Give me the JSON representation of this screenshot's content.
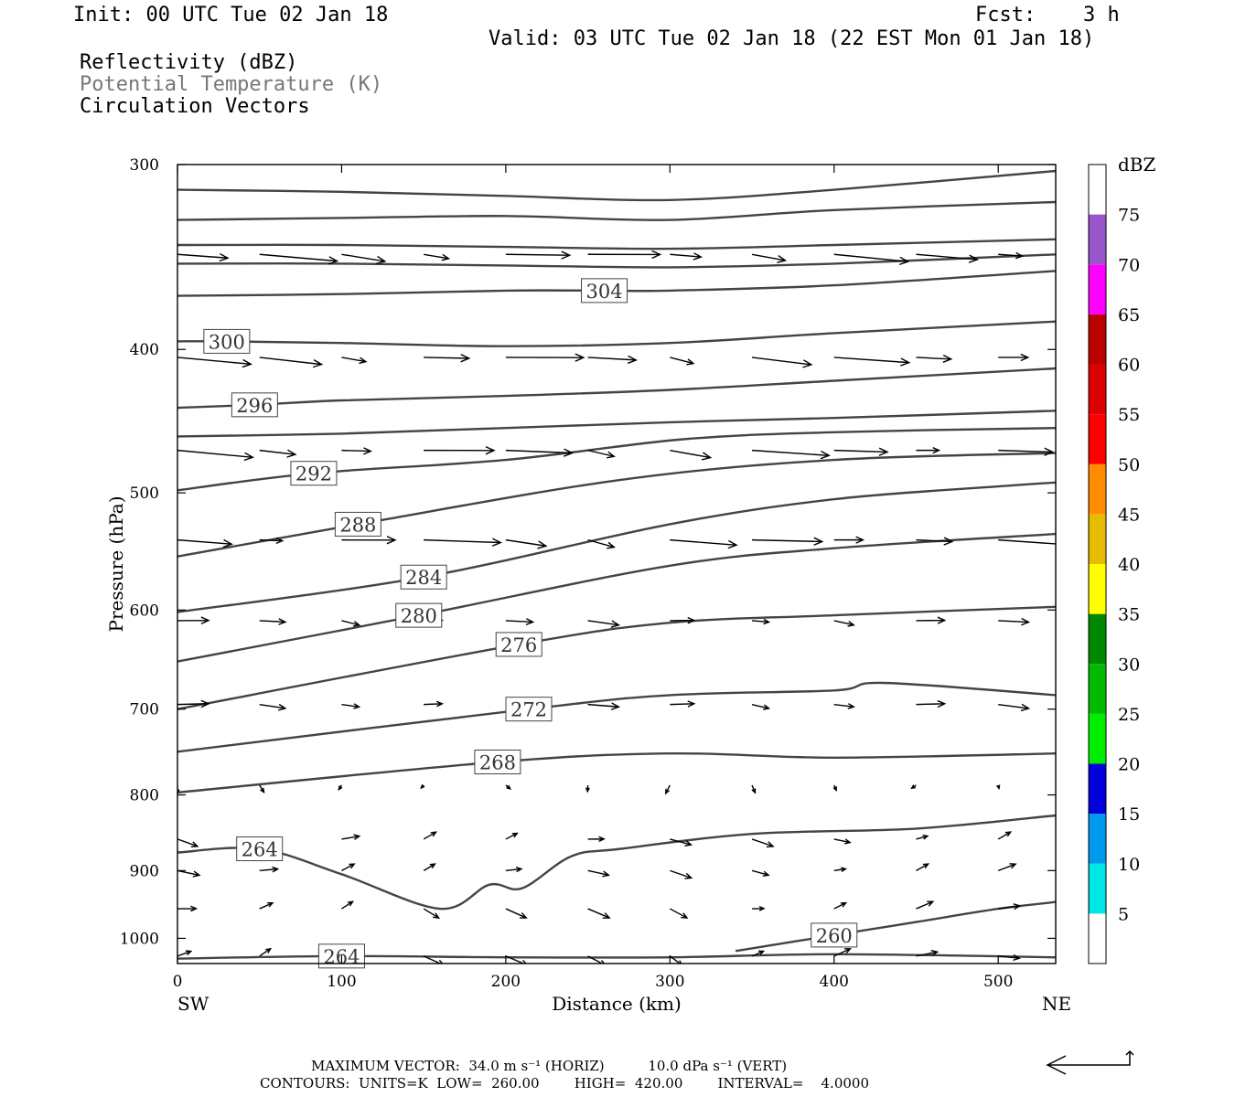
{
  "header": {
    "init": "Init: 00 UTC Tue 02 Jan 18",
    "fcst_label": "Fcst:",
    "fcst_value": "3 h",
    "valid": "Valid: 03 UTC Tue 02 Jan 18 (22 EST Mon 01 Jan 18)",
    "field1": "Reflectivity (dBZ)",
    "field2": "Potential Temperature (K)",
    "field3": "Circulation Vectors"
  },
  "footer": {
    "line1": "MAXIMUM VECTOR:  34.0 m s⁻¹ (HORIZ)          10.0 dPa s⁻¹ (VERT)",
    "line2": "CONTOURS:  UNITS=K  LOW=  260.00        HIGH=  420.00        INTERVAL=    4.0000"
  },
  "chart_data": {
    "type": "line",
    "subtype": "vertical cross-section",
    "xlabel": "Distance (km)",
    "ylabel": "Pressure (hPa)",
    "xlim": [
      0,
      535
    ],
    "ylim": [
      1040,
      300
    ],
    "y_scale": "log (pressure)",
    "x_ticks": [
      0,
      100,
      200,
      300,
      400,
      500
    ],
    "y_ticks": [
      300,
      400,
      500,
      600,
      700,
      800,
      900,
      1000
    ],
    "x_endpoint_labels": {
      "left": "SW",
      "right": "NE"
    },
    "contour_color": "#444444",
    "isentropes": [
      {
        "label": "",
        "x": [
          0,
          100,
          200,
          300,
          400,
          535
        ],
        "y": [
          312,
          313,
          315,
          317,
          312,
          303
        ]
      },
      {
        "label": "",
        "x": [
          0,
          100,
          200,
          300,
          400,
          535
        ],
        "y": [
          327,
          326,
          325,
          327,
          322,
          318
        ]
      },
      {
        "label": "",
        "x": [
          0,
          100,
          200,
          300,
          400,
          535
        ],
        "y": [
          340,
          340,
          341,
          342,
          340,
          337
        ]
      },
      {
        "label": "",
        "x": [
          0,
          100,
          200,
          300,
          400,
          535
        ],
        "y": [
          350,
          350,
          351,
          352,
          350,
          345
        ]
      },
      {
        "label": "304",
        "x": [
          0,
          100,
          200,
          260,
          300,
          400,
          535
        ],
        "y": [
          368,
          367,
          365,
          365,
          365,
          362,
          354
        ]
      },
      {
        "label": "300",
        "x": [
          0,
          30,
          100,
          200,
          300,
          400,
          535
        ],
        "y": [
          395,
          395,
          396,
          398,
          396,
          390,
          383
        ]
      },
      {
        "label": "296",
        "x": [
          0,
          47,
          100,
          200,
          300,
          400,
          535
        ],
        "y": [
          438,
          436,
          433,
          430,
          426,
          420,
          412
        ]
      },
      {
        "label": "",
        "x": [
          0,
          100,
          200,
          300,
          400,
          535
        ],
        "y": [
          458,
          456,
          452,
          448,
          445,
          440
        ]
      },
      {
        "label": "292",
        "x": [
          0,
          83,
          200,
          308,
          400,
          535
        ],
        "y": [
          498,
          485,
          475,
          460,
          455,
          452
        ]
      },
      {
        "label": "288",
        "x": [
          0,
          110,
          270,
          400,
          535
        ],
        "y": [
          552,
          525,
          490,
          475,
          470
        ]
      },
      {
        "label": "284",
        "x": [
          0,
          150,
          300,
          400,
          500,
          535
        ],
        "y": [
          602,
          570,
          525,
          505,
          495,
          492
        ]
      },
      {
        "label": "280",
        "x": [
          0,
          147,
          300,
          400,
          535
        ],
        "y": [
          650,
          605,
          560,
          545,
          533
        ]
      },
      {
        "label": "276",
        "x": [
          0,
          208,
          300,
          400,
          535
        ],
        "y": [
          700,
          633,
          612,
          605,
          597
        ]
      },
      {
        "label": "272",
        "x": [
          0,
          214,
          300,
          400,
          430,
          535
        ],
        "y": [
          748,
          700,
          685,
          680,
          672,
          685
        ]
      },
      {
        "label": "268",
        "x": [
          0,
          195,
          300,
          400,
          535
        ],
        "y": [
          797,
          760,
          750,
          755,
          750
        ]
      },
      {
        "label": "264",
        "x": [
          0,
          50,
          100,
          160,
          190,
          210,
          240,
          270,
          350,
          450,
          535
        ],
        "y": [
          875,
          870,
          905,
          955,
          920,
          925,
          880,
          870,
          850,
          843,
          826
        ]
      },
      {
        "label": "260",
        "x": [
          340,
          400,
          450,
          500,
          535
        ],
        "y": [
          1020,
          995,
          975,
          955,
          945
        ]
      },
      {
        "label": "264",
        "x": [
          0,
          100,
          200,
          300,
          400,
          535
        ],
        "y": [
          1032,
          1028,
          1030,
          1030,
          1025,
          1030
        ]
      }
    ],
    "colorbar": {
      "label": "dBZ",
      "ticks": [
        5,
        10,
        15,
        20,
        25,
        30,
        35,
        40,
        45,
        50,
        55,
        60,
        65,
        70,
        75
      ],
      "bands": [
        {
          "from": 5,
          "to": 10,
          "color": "#00e5e5"
        },
        {
          "from": 10,
          "to": 15,
          "color": "#0099ee"
        },
        {
          "from": 15,
          "to": 20,
          "color": "#0000dd"
        },
        {
          "from": 20,
          "to": 25,
          "color": "#00ee00"
        },
        {
          "from": 25,
          "to": 30,
          "color": "#00bb00"
        },
        {
          "from": 30,
          "to": 35,
          "color": "#008800"
        },
        {
          "from": 35,
          "to": 40,
          "color": "#ffff00"
        },
        {
          "from": 40,
          "to": 45,
          "color": "#e5bc00"
        },
        {
          "from": 45,
          "to": 50,
          "color": "#ff8c00"
        },
        {
          "from": 50,
          "to": 55,
          "color": "#ff0000"
        },
        {
          "from": 55,
          "to": 60,
          "color": "#dd0000"
        },
        {
          "from": 60,
          "to": 65,
          "color": "#bb0000"
        },
        {
          "from": 65,
          "to": 70,
          "color": "#ff00ff"
        },
        {
          "from": 70,
          "to": 75,
          "color": "#9955cc"
        }
      ]
    }
  }
}
